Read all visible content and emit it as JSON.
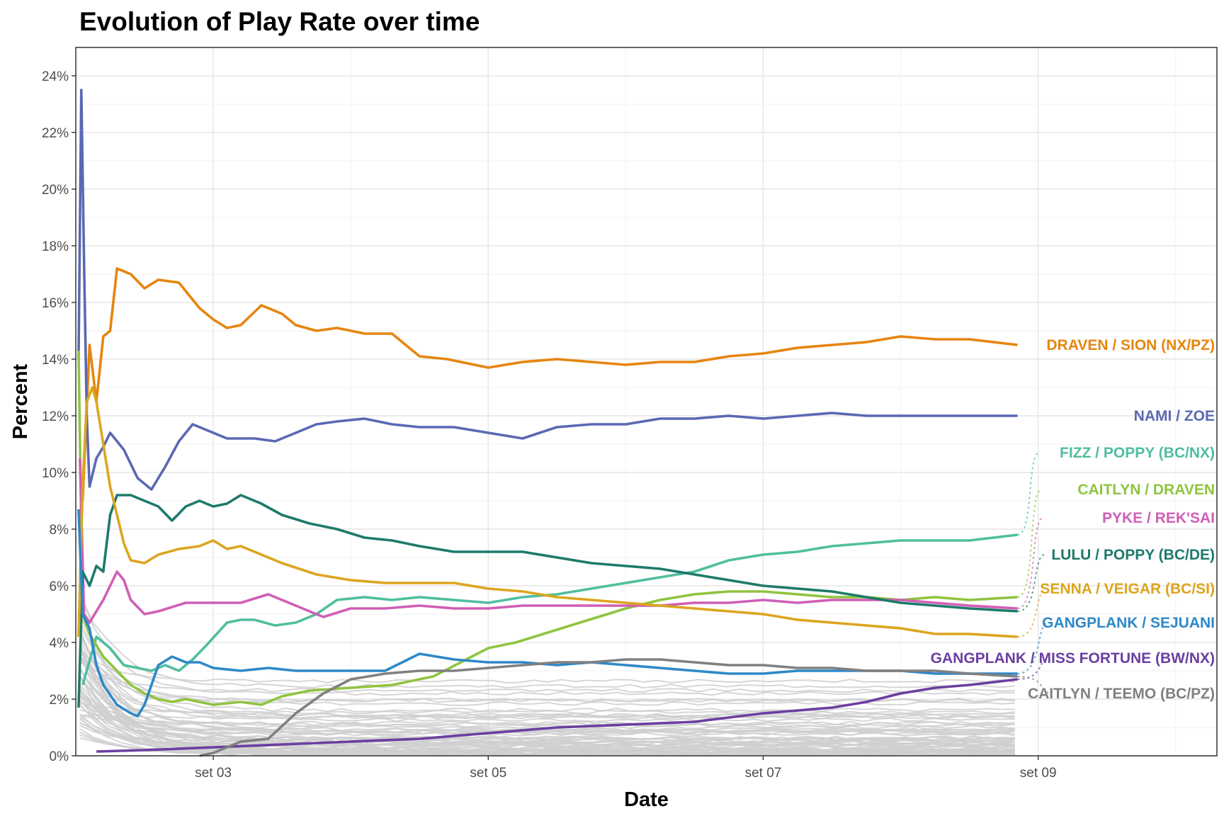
{
  "chart_data": {
    "type": "line",
    "title": "Evolution of Play Rate over time",
    "xlabel": "Date",
    "ylabel": "Percent",
    "x_ticks": [
      "set 03",
      "set 05",
      "set 07",
      "set 09"
    ],
    "y_ticks": [
      "0%",
      "2%",
      "4%",
      "6%",
      "8%",
      "10%",
      "12%",
      "14%",
      "16%",
      "18%",
      "20%",
      "22%",
      "24%"
    ],
    "xlim_days": [
      0.0,
      8.3
    ],
    "ylim": [
      0,
      25
    ],
    "grid": true,
    "legend": "direct labels at right",
    "series": [
      {
        "name": "DRAVEN / SION (NX/PZ)",
        "color": "#E6850E",
        "x": [
          0.05,
          0.1,
          0.15,
          0.2,
          0.25,
          0.3,
          0.4,
          0.5,
          0.6,
          0.75,
          0.9,
          1.0,
          1.1,
          1.2,
          1.35,
          1.5,
          1.6,
          1.75,
          1.9,
          2.1,
          2.3,
          2.5,
          2.7,
          3.0,
          3.25,
          3.5,
          3.75,
          4.0,
          4.25,
          4.5,
          4.75,
          5.0,
          5.25,
          5.5,
          5.75,
          6.0,
          6.25,
          6.5,
          6.85
        ],
        "y": [
          9.0,
          14.5,
          12.5,
          14.8,
          15.0,
          17.2,
          17.0,
          16.5,
          16.8,
          16.7,
          15.8,
          15.4,
          15.1,
          15.2,
          15.9,
          15.6,
          15.2,
          15.0,
          15.1,
          14.9,
          14.9,
          14.1,
          14.0,
          13.7,
          13.9,
          14.0,
          13.9,
          13.8,
          13.9,
          13.9,
          14.1,
          14.2,
          14.4,
          14.5,
          14.6,
          14.8,
          14.7,
          14.7,
          14.5
        ]
      },
      {
        "name": "NAMI / ZOE",
        "color": "#5B68B3",
        "x": [
          0.02,
          0.04,
          0.06,
          0.08,
          0.1,
          0.15,
          0.2,
          0.25,
          0.35,
          0.45,
          0.55,
          0.65,
          0.75,
          0.85,
          0.9,
          1.0,
          1.1,
          1.2,
          1.3,
          1.45,
          1.6,
          1.75,
          1.9,
          2.1,
          2.3,
          2.5,
          2.75,
          3.0,
          3.25,
          3.5,
          3.75,
          4.0,
          4.25,
          4.5,
          4.75,
          5.0,
          5.25,
          5.5,
          5.75,
          6.0,
          6.25,
          6.5,
          6.85
        ],
        "y": [
          14.0,
          23.5,
          17.5,
          12.0,
          9.5,
          10.5,
          10.9,
          11.4,
          10.8,
          9.8,
          9.4,
          10.2,
          11.1,
          11.7,
          11.6,
          11.4,
          11.2,
          11.2,
          11.2,
          11.1,
          11.4,
          11.7,
          11.8,
          11.9,
          11.7,
          11.6,
          11.6,
          11.4,
          11.2,
          11.6,
          11.7,
          11.7,
          11.9,
          11.9,
          12.0,
          11.9,
          12.0,
          12.1,
          12.0,
          12.0,
          12.0,
          12.0,
          12.0
        ]
      },
      {
        "name": "FIZZ / POPPY (BC/NX)",
        "color": "#4FBE9F",
        "x": [
          0.05,
          0.15,
          0.25,
          0.35,
          0.45,
          0.55,
          0.65,
          0.75,
          0.85,
          0.95,
          1.1,
          1.2,
          1.3,
          1.45,
          1.6,
          1.75,
          1.9,
          2.1,
          2.3,
          2.5,
          2.75,
          3.0,
          3.25,
          3.5,
          3.75,
          4.0,
          4.25,
          4.5,
          4.75,
          5.0,
          5.25,
          5.5,
          5.75,
          6.0,
          6.25,
          6.5,
          6.85
        ],
        "y": [
          2.5,
          4.2,
          3.8,
          3.2,
          3.1,
          3.0,
          3.2,
          3.0,
          3.4,
          3.9,
          4.7,
          4.8,
          4.8,
          4.6,
          4.7,
          5.0,
          5.5,
          5.6,
          5.5,
          5.6,
          5.5,
          5.4,
          5.6,
          5.7,
          5.9,
          6.1,
          6.3,
          6.5,
          6.9,
          7.1,
          7.2,
          7.4,
          7.5,
          7.6,
          7.6,
          7.6,
          7.8
        ]
      },
      {
        "name": "CAITLYN / DRAVEN",
        "color": "#8FC43F",
        "x": [
          0.02,
          0.05,
          0.1,
          0.2,
          0.3,
          0.4,
          0.5,
          0.6,
          0.7,
          0.8,
          0.9,
          1.0,
          1.2,
          1.35,
          1.5,
          1.7,
          2.0,
          2.3,
          2.6,
          2.8,
          3.0,
          3.2,
          3.4,
          3.6,
          3.8,
          4.0,
          4.25,
          4.5,
          4.75,
          5.0,
          5.25,
          5.5,
          5.75,
          6.0,
          6.25,
          6.5,
          6.85
        ],
        "y": [
          14.3,
          5.0,
          4.3,
          3.5,
          3.0,
          2.5,
          2.2,
          2.0,
          1.9,
          2.0,
          1.9,
          1.8,
          1.9,
          1.8,
          2.1,
          2.3,
          2.4,
          2.5,
          2.8,
          3.3,
          3.8,
          4.0,
          4.3,
          4.6,
          4.9,
          5.2,
          5.5,
          5.7,
          5.8,
          5.8,
          5.7,
          5.6,
          5.6,
          5.5,
          5.6,
          5.5,
          5.6
        ]
      },
      {
        "name": "PYKE / REK'SAI",
        "color": "#CF5FB5",
        "x": [
          0.03,
          0.06,
          0.1,
          0.2,
          0.3,
          0.35,
          0.4,
          0.5,
          0.6,
          0.8,
          1.0,
          1.2,
          1.4,
          1.6,
          1.8,
          2.0,
          2.25,
          2.5,
          2.75,
          3.0,
          3.25,
          3.5,
          3.75,
          4.0,
          4.25,
          4.5,
          4.75,
          5.0,
          5.25,
          5.5,
          5.75,
          6.0,
          6.25,
          6.5,
          6.85
        ],
        "y": [
          10.5,
          5.0,
          4.7,
          5.5,
          6.5,
          6.2,
          5.5,
          5.0,
          5.1,
          5.4,
          5.4,
          5.4,
          5.7,
          5.3,
          4.9,
          5.2,
          5.2,
          5.3,
          5.2,
          5.2,
          5.3,
          5.3,
          5.3,
          5.3,
          5.3,
          5.4,
          5.4,
          5.5,
          5.4,
          5.5,
          5.5,
          5.5,
          5.4,
          5.3,
          5.2
        ]
      },
      {
        "name": "LULU / POPPY (BC/DE)",
        "color": "#1E7A6B",
        "x": [
          0.02,
          0.05,
          0.1,
          0.15,
          0.2,
          0.25,
          0.3,
          0.4,
          0.5,
          0.6,
          0.7,
          0.8,
          0.9,
          1.0,
          1.1,
          1.2,
          1.35,
          1.5,
          1.7,
          1.9,
          2.1,
          2.3,
          2.5,
          2.75,
          3.0,
          3.25,
          3.5,
          3.75,
          4.0,
          4.25,
          4.5,
          4.75,
          5.0,
          5.25,
          5.5,
          5.75,
          6.0,
          6.25,
          6.5,
          6.85
        ],
        "y": [
          1.7,
          6.5,
          6.0,
          6.7,
          6.5,
          8.5,
          9.2,
          9.2,
          9.0,
          8.8,
          8.3,
          8.8,
          9.0,
          8.8,
          8.9,
          9.2,
          8.9,
          8.5,
          8.2,
          8.0,
          7.7,
          7.6,
          7.4,
          7.2,
          7.2,
          7.2,
          7.0,
          6.8,
          6.7,
          6.6,
          6.4,
          6.2,
          6.0,
          5.9,
          5.8,
          5.6,
          5.4,
          5.3,
          5.2,
          5.1
        ]
      },
      {
        "name": "SENNA / VEIGAR (BC/SI)",
        "color": "#DCA51E",
        "x": [
          0.02,
          0.05,
          0.08,
          0.12,
          0.15,
          0.2,
          0.25,
          0.3,
          0.35,
          0.4,
          0.5,
          0.6,
          0.75,
          0.9,
          1.0,
          1.1,
          1.2,
          1.3,
          1.5,
          1.75,
          2.0,
          2.25,
          2.5,
          2.75,
          3.0,
          3.25,
          3.5,
          3.75,
          4.0,
          4.25,
          4.5,
          4.75,
          5.0,
          5.25,
          5.5,
          5.75,
          6.0,
          6.25,
          6.5,
          6.85
        ],
        "y": [
          4.2,
          9.5,
          12.5,
          13.0,
          12.5,
          11.0,
          9.5,
          8.5,
          7.5,
          6.9,
          6.8,
          7.1,
          7.3,
          7.4,
          7.6,
          7.3,
          7.4,
          7.2,
          6.8,
          6.4,
          6.2,
          6.1,
          6.1,
          6.1,
          5.9,
          5.8,
          5.6,
          5.5,
          5.4,
          5.3,
          5.2,
          5.1,
          5.0,
          4.8,
          4.7,
          4.6,
          4.5,
          4.3,
          4.3,
          4.2
        ]
      },
      {
        "name": "GANGPLANK / SEJUANI",
        "color": "#2E88C8",
        "x": [
          0.02,
          0.05,
          0.1,
          0.15,
          0.2,
          0.3,
          0.4,
          0.45,
          0.5,
          0.55,
          0.6,
          0.7,
          0.8,
          0.9,
          1.0,
          1.2,
          1.4,
          1.6,
          1.8,
          2.0,
          2.25,
          2.5,
          2.75,
          3.0,
          3.25,
          3.5,
          3.75,
          4.0,
          4.25,
          4.5,
          4.75,
          5.0,
          5.25,
          5.5,
          5.75,
          6.0,
          6.25,
          6.5,
          6.85
        ],
        "y": [
          8.7,
          5.0,
          4.5,
          3.2,
          2.5,
          1.8,
          1.5,
          1.4,
          1.8,
          2.5,
          3.2,
          3.5,
          3.3,
          3.3,
          3.1,
          3.0,
          3.1,
          3.0,
          3.0,
          3.0,
          3.0,
          3.6,
          3.4,
          3.3,
          3.3,
          3.2,
          3.3,
          3.2,
          3.1,
          3.0,
          2.9,
          2.9,
          3.0,
          3.0,
          3.0,
          3.0,
          2.9,
          2.9,
          2.9
        ]
      },
      {
        "name": "GANGPLANK / MISS FORTUNE (BW/NX)",
        "color": "#6B3FA0",
        "x": [
          0.15,
          0.5,
          1.0,
          1.5,
          2.0,
          2.5,
          3.0,
          3.5,
          4.0,
          4.5,
          5.0,
          5.5,
          5.75,
          6.0,
          6.25,
          6.5,
          6.85
        ],
        "y": [
          0.15,
          0.2,
          0.3,
          0.4,
          0.5,
          0.6,
          0.8,
          1.0,
          1.1,
          1.2,
          1.5,
          1.7,
          1.9,
          2.2,
          2.4,
          2.5,
          2.7
        ]
      },
      {
        "name": "CAITLYN / TEEMO (BC/PZ)",
        "color": "#808080",
        "x": [
          0.9,
          1.0,
          1.2,
          1.4,
          1.6,
          1.8,
          2.0,
          2.25,
          2.5,
          2.75,
          3.0,
          3.25,
          3.5,
          3.75,
          4.0,
          4.25,
          4.5,
          4.75,
          5.0,
          5.25,
          5.5,
          5.75,
          6.0,
          6.25,
          6.5,
          6.85
        ],
        "y": [
          0.0,
          0.1,
          0.5,
          0.6,
          1.5,
          2.2,
          2.7,
          2.9,
          3.0,
          3.0,
          3.1,
          3.2,
          3.3,
          3.3,
          3.4,
          3.4,
          3.3,
          3.2,
          3.2,
          3.1,
          3.1,
          3.0,
          3.0,
          3.0,
          2.9,
          2.8
        ]
      }
    ]
  }
}
